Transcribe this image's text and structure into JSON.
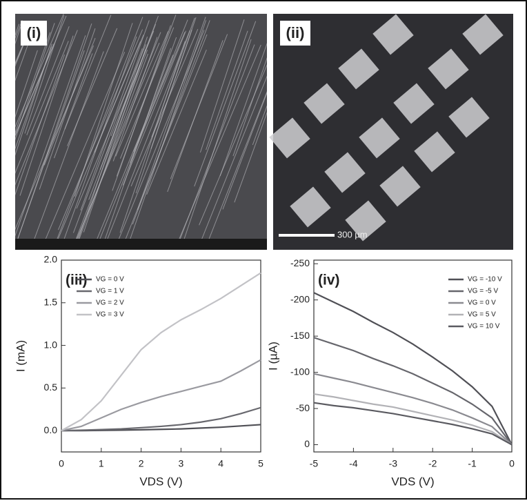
{
  "images": [
    {
      "label": "(i)"
    },
    {
      "label": "(ii)",
      "scale_bar": "300 µm"
    }
  ],
  "chart_data": [
    {
      "type": "line",
      "panel_label": "(iii)",
      "xlabel": "VDS (V)",
      "ylabel": "I (mA)",
      "x": [
        0,
        0.5,
        1,
        1.5,
        2,
        2.5,
        3,
        3.5,
        4,
        4.5,
        5
      ],
      "xlim": [
        0,
        5
      ],
      "xticks": [
        0,
        1,
        2,
        3,
        4,
        5
      ],
      "ylim": [
        -0.25,
        2.0
      ],
      "yticks": [
        {
          "value": 0,
          "label": "0.0"
        },
        0.5,
        {
          "value": 1,
          "label": "1.0"
        },
        1.5,
        {
          "value": 2,
          "label": "2.0"
        }
      ],
      "legend": "upper left",
      "series": [
        {
          "name": "VG = 0 V",
          "color": "#4f4f55",
          "values": [
            0,
            0,
            0.003,
            0.006,
            0.01,
            0.015,
            0.02,
            0.03,
            0.04,
            0.055,
            0.07
          ]
        },
        {
          "name": "VG = 1 V",
          "color": "#68686e",
          "values": [
            0,
            0.005,
            0.012,
            0.02,
            0.035,
            0.05,
            0.07,
            0.1,
            0.14,
            0.2,
            0.27
          ]
        },
        {
          "name": "VG = 2 V",
          "color": "#9a9aa0",
          "values": [
            0,
            0.05,
            0.15,
            0.25,
            0.33,
            0.4,
            0.46,
            0.52,
            0.58,
            0.7,
            0.83
          ]
        },
        {
          "name": "VG = 3 V",
          "color": "#c2c2c6",
          "values": [
            0,
            0.13,
            0.35,
            0.65,
            0.95,
            1.15,
            1.3,
            1.42,
            1.55,
            1.7,
            1.85
          ]
        }
      ]
    },
    {
      "type": "line",
      "panel_label": "(iv)",
      "xlabel": "VDS (V)",
      "ylabel": "I (µA)",
      "x": [
        -5,
        -4.5,
        -4,
        -3.5,
        -3,
        -2.5,
        -2,
        -1.5,
        -1,
        -0.5,
        0
      ],
      "xlim": [
        -5,
        0
      ],
      "xticks": [
        -5,
        -4,
        -3,
        -2,
        -1,
        0
      ],
      "ylim": [
        10,
        -255
      ],
      "yticks": [
        0,
        -50,
        -100,
        -150,
        -200,
        -250
      ],
      "legend": "upper right",
      "series": [
        {
          "name": "VG = -10 V",
          "color": "#505056",
          "values": [
            -210,
            -197,
            -184,
            -169,
            -155,
            -139,
            -121,
            -102,
            -80,
            -53,
            0
          ]
        },
        {
          "name": "VG = -5 V",
          "color": "#66666c",
          "values": [
            -148,
            -139,
            -130,
            -119,
            -109,
            -98,
            -85,
            -72,
            -56,
            -37,
            0
          ]
        },
        {
          "name": "VG = 0 V",
          "color": "#8a8a90",
          "values": [
            -98,
            -92,
            -86,
            -79,
            -72,
            -65,
            -57,
            -48,
            -37,
            -25,
            0
          ]
        },
        {
          "name": "VG = 5 V",
          "color": "#b2b2b6",
          "values": [
            -70,
            -66,
            -61,
            -56,
            -52,
            -46,
            -40,
            -34,
            -27,
            -18,
            0
          ]
        },
        {
          "name": "VG = 10 V",
          "color": "#5a5a60",
          "values": [
            -58,
            -54,
            -51,
            -47,
            -43,
            -38,
            -33,
            -28,
            -22,
            -15,
            0
          ]
        }
      ]
    }
  ]
}
